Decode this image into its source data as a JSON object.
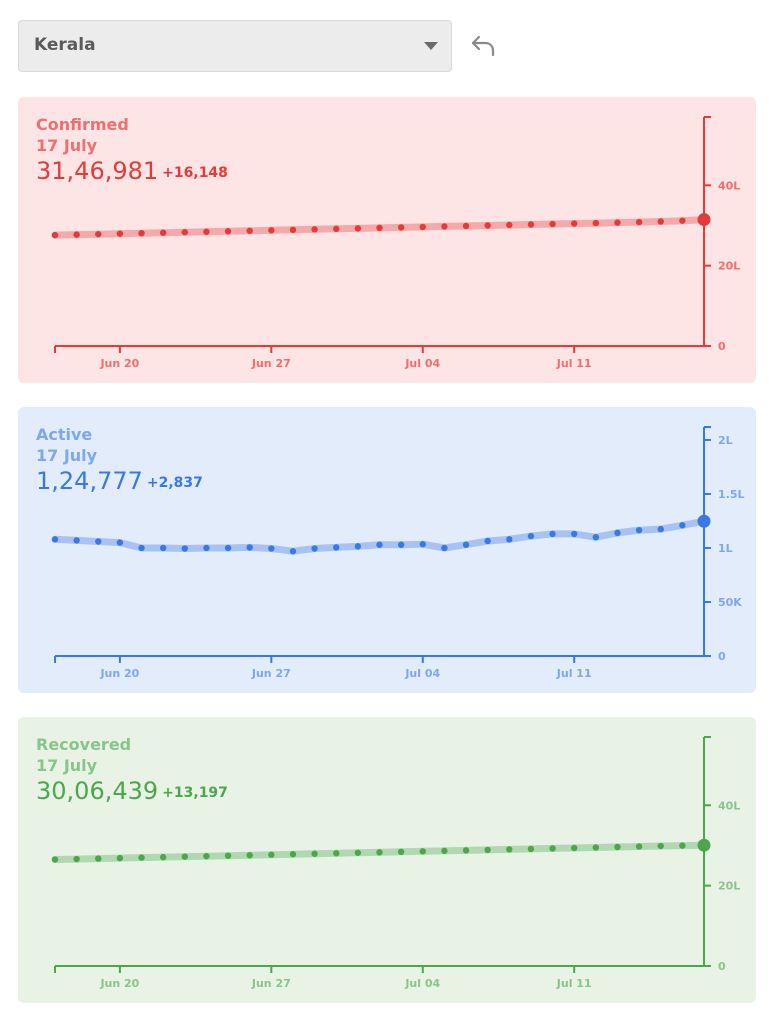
{
  "state_selector": {
    "value": "Kerala"
  },
  "icons": {
    "back": "undo-arrow-icon",
    "dropdown": "chevron-down-icon"
  },
  "x_labels": [
    "Jun 20",
    "Jun 27",
    "Jul 04",
    "Jul 11"
  ],
  "chart_data": [
    {
      "type": "line",
      "title": "Confirmed",
      "date": "17 July",
      "total": "31,46,981",
      "delta": "+16,148",
      "color": "#e23b3b",
      "label_color": "#ee6f6f",
      "bg": "#fde4e5",
      "y_ticks": [
        {
          "v": 0,
          "t": "0"
        },
        {
          "v": 2000000,
          "t": "20L"
        },
        {
          "v": 4000000,
          "t": "40L"
        }
      ],
      "ylim": [
        0,
        5700000
      ],
      "x": [
        "Jun 17",
        "Jun 18",
        "Jun 19",
        "Jun 20",
        "Jun 21",
        "Jun 22",
        "Jun 23",
        "Jun 24",
        "Jun 25",
        "Jun 26",
        "Jun 27",
        "Jun 28",
        "Jun 29",
        "Jun 30",
        "Jul 01",
        "Jul 02",
        "Jul 03",
        "Jul 04",
        "Jul 05",
        "Jul 06",
        "Jul 07",
        "Jul 08",
        "Jul 09",
        "Jul 10",
        "Jul 11",
        "Jul 12",
        "Jul 13",
        "Jul 14",
        "Jul 15",
        "Jul 16",
        "Jul 17"
      ],
      "values": [
        2760000,
        2772000,
        2784000,
        2796000,
        2808000,
        2820000,
        2832000,
        2844000,
        2856000,
        2868000,
        2880000,
        2892000,
        2904000,
        2916000,
        2928000,
        2940000,
        2952000,
        2964000,
        2976000,
        2988000,
        3000000,
        3012000,
        3024000,
        3036000,
        3048000,
        3060000,
        3072000,
        3084000,
        3100000,
        3120000,
        3146981
      ]
    },
    {
      "type": "line",
      "title": "Active",
      "date": "17 July",
      "total": "1,24,777",
      "delta": "+2,837",
      "color": "#3a78e4",
      "label_color": "#7ea7ec",
      "bg": "#e3ecfb",
      "y_ticks": [
        {
          "v": 0,
          "t": "0"
        },
        {
          "v": 50000,
          "t": "50K"
        },
        {
          "v": 100000,
          "t": "1L"
        },
        {
          "v": 150000,
          "t": "1.5L"
        },
        {
          "v": 200000,
          "t": "2L"
        }
      ],
      "ylim": [
        0,
        212000
      ],
      "x": [
        "Jun 17",
        "Jun 18",
        "Jun 19",
        "Jun 20",
        "Jun 21",
        "Jun 22",
        "Jun 23",
        "Jun 24",
        "Jun 25",
        "Jun 26",
        "Jun 27",
        "Jun 28",
        "Jun 29",
        "Jun 30",
        "Jul 01",
        "Jul 02",
        "Jul 03",
        "Jul 04",
        "Jul 05",
        "Jul 06",
        "Jul 07",
        "Jul 08",
        "Jul 09",
        "Jul 10",
        "Jul 11",
        "Jul 12",
        "Jul 13",
        "Jul 14",
        "Jul 15",
        "Jul 16",
        "Jul 17"
      ],
      "values": [
        108000,
        107000,
        106000,
        105000,
        100000,
        100000,
        99500,
        100000,
        100000,
        100500,
        99500,
        97000,
        99500,
        100500,
        101500,
        103000,
        103000,
        103500,
        100000,
        103000,
        106500,
        108000,
        111000,
        113000,
        113000,
        110000,
        114000,
        116500,
        117500,
        121000,
        124777
      ]
    },
    {
      "type": "line",
      "title": "Recovered",
      "date": "17 July",
      "total": "30,06,439",
      "delta": "+13,197",
      "color": "#4ca64c",
      "label_color": "#89c489",
      "bg": "#e8f3e6",
      "y_ticks": [
        {
          "v": 0,
          "t": "0"
        },
        {
          "v": 2000000,
          "t": "20L"
        },
        {
          "v": 4000000,
          "t": "40L"
        }
      ],
      "ylim": [
        0,
        5700000
      ],
      "x": [
        "Jun 17",
        "Jun 18",
        "Jun 19",
        "Jun 20",
        "Jun 21",
        "Jun 22",
        "Jun 23",
        "Jun 24",
        "Jun 25",
        "Jun 26",
        "Jun 27",
        "Jun 28",
        "Jun 29",
        "Jun 30",
        "Jul 01",
        "Jul 02",
        "Jul 03",
        "Jul 04",
        "Jul 05",
        "Jul 06",
        "Jul 07",
        "Jul 08",
        "Jul 09",
        "Jul 10",
        "Jul 11",
        "Jul 12",
        "Jul 13",
        "Jul 14",
        "Jul 15",
        "Jul 16",
        "Jul 17"
      ],
      "values": [
        2650000,
        2662000,
        2674000,
        2686000,
        2698000,
        2710000,
        2722000,
        2734000,
        2746000,
        2758000,
        2770000,
        2782000,
        2794000,
        2806000,
        2818000,
        2830000,
        2842000,
        2854000,
        2866000,
        2878000,
        2890000,
        2902000,
        2914000,
        2926000,
        2938000,
        2950000,
        2962000,
        2974000,
        2986000,
        2996000,
        3006439
      ]
    }
  ]
}
